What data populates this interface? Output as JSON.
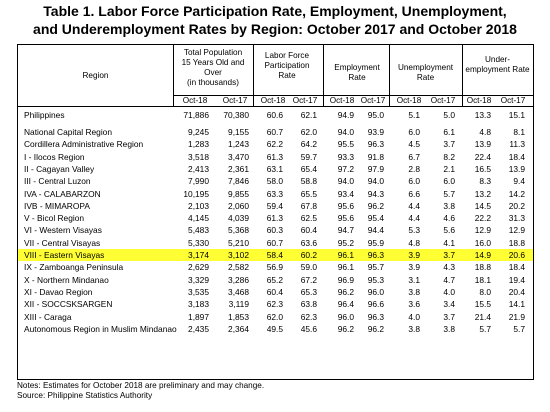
{
  "title": {
    "line1": "Table 1. Labor Force Participation Rate, Employment, Unemployment,",
    "line2": "and Underemployment Rates by Region: October 2017 and October 2018"
  },
  "header": {
    "region": "Region",
    "population": [
      "Total Population",
      "15 Years Old and",
      "Over",
      "(in thousands)"
    ],
    "lfpr": [
      "Labor Force",
      "Participation",
      "Rate"
    ],
    "employment": [
      "Employment",
      "Rate"
    ],
    "unemployment": [
      "Unemployment",
      "Rate"
    ],
    "underemployment": [
      "Under-",
      "employment Rate"
    ],
    "periods": [
      "Oct-18",
      "Oct-17",
      "Oct-18",
      "Oct-17",
      "Oct-18",
      "Oct-17",
      "Oct-18",
      "Oct-17",
      "Oct-18",
      "Oct-17"
    ]
  },
  "rows": [
    {
      "region": "Philippines",
      "values": [
        "71,886",
        "70,380",
        "60.6",
        "62.1",
        "94.9",
        "95.0",
        "5.1",
        "5.0",
        "13.3",
        "15.1"
      ],
      "highlight": false
    },
    {
      "region": "National Capital Region",
      "values": [
        "9,245",
        "9,155",
        "60.7",
        "62.0",
        "94.0",
        "93.9",
        "6.0",
        "6.1",
        "4.8",
        "8.1"
      ],
      "highlight": false
    },
    {
      "region": "Cordillera Administrative Region",
      "values": [
        "1,283",
        "1,243",
        "62.2",
        "64.2",
        "95.5",
        "96.3",
        "4.5",
        "3.7",
        "13.9",
        "11.3"
      ],
      "highlight": false
    },
    {
      "region": "I - Ilocos Region",
      "values": [
        "3,518",
        "3,470",
        "61.3",
        "59.7",
        "93.3",
        "91.8",
        "6.7",
        "8.2",
        "22.4",
        "18.4"
      ],
      "highlight": false
    },
    {
      "region": "II - Cagayan Valley",
      "values": [
        "2,413",
        "2,361",
        "63.1",
        "65.4",
        "97.2",
        "97.9",
        "2.8",
        "2.1",
        "16.5",
        "13.9"
      ],
      "highlight": false
    },
    {
      "region": "III - Central Luzon",
      "values": [
        "7,990",
        "7,846",
        "58.0",
        "58.8",
        "94.0",
        "94.0",
        "6.0",
        "6.0",
        "8.3",
        "9.4"
      ],
      "highlight": false
    },
    {
      "region": "IVA - CALABARZON",
      "values": [
        "10,195",
        "9,855",
        "63.3",
        "65.5",
        "93.4",
        "94.3",
        "6.6",
        "5.7",
        "13.2",
        "14.2"
      ],
      "highlight": false
    },
    {
      "region": "IVB - MIMAROPA",
      "values": [
        "2,103",
        "2,060",
        "59.4",
        "67.8",
        "95.6",
        "96.2",
        "4.4",
        "3.8",
        "14.5",
        "20.2"
      ],
      "highlight": false
    },
    {
      "region": "V - Bicol Region",
      "values": [
        "4,145",
        "4,039",
        "61.3",
        "62.5",
        "95.6",
        "95.4",
        "4.4",
        "4.6",
        "22.2",
        "31.3"
      ],
      "highlight": false
    },
    {
      "region": "VI - Western Visayas",
      "values": [
        "5,483",
        "5,368",
        "60.3",
        "60.4",
        "94.7",
        "94.4",
        "5.3",
        "5.6",
        "12.9",
        "12.9"
      ],
      "highlight": false
    },
    {
      "region": "VII - Central Visayas",
      "values": [
        "5,330",
        "5,210",
        "60.7",
        "63.6",
        "95.2",
        "95.9",
        "4.8",
        "4.1",
        "16.0",
        "18.8"
      ],
      "highlight": false
    },
    {
      "region": "VIII - Eastern Visayas",
      "values": [
        "3,174",
        "3,102",
        "58.4",
        "60.2",
        "96.1",
        "96.3",
        "3.9",
        "3.7",
        "14.9",
        "20.6"
      ],
      "highlight": true
    },
    {
      "region": "IX - Zamboanga Peninsula",
      "values": [
        "2,629",
        "2,582",
        "56.9",
        "59.0",
        "96.1",
        "95.7",
        "3.9",
        "4.3",
        "18.8",
        "18.4"
      ],
      "highlight": false
    },
    {
      "region": "X - Northern Mindanao",
      "values": [
        "3,329",
        "3,286",
        "65.2",
        "67.2",
        "96.9",
        "95.3",
        "3.1",
        "4.7",
        "18.1",
        "19.4"
      ],
      "highlight": false
    },
    {
      "region": "XI - Davao Region",
      "values": [
        "3,535",
        "3,468",
        "60.4",
        "65.3",
        "96.2",
        "96.0",
        "3.8",
        "4.0",
        "8.0",
        "20.4"
      ],
      "highlight": false
    },
    {
      "region": "XII - SOCCSKSARGEN",
      "values": [
        "3,183",
        "3,119",
        "62.3",
        "63.8",
        "96.4",
        "96.6",
        "3.6",
        "3.4",
        "15.5",
        "14.1"
      ],
      "highlight": false
    },
    {
      "region": "XIII - Caraga",
      "values": [
        "1,897",
        "1,853",
        "62.0",
        "62.3",
        "96.0",
        "96.3",
        "4.0",
        "3.7",
        "21.4",
        "21.9"
      ],
      "highlight": false
    },
    {
      "region": "Autonomous Region in Muslim Mindanao",
      "values": [
        "2,435",
        "2,364",
        "49.5",
        "45.6",
        "96.2",
        "96.2",
        "3.8",
        "3.8",
        "5.7",
        "5.7"
      ],
      "highlight": false
    }
  ],
  "notes": {
    "line1": "Notes: Estimates for October 2018 are preliminary and may change.",
    "line2": "Source: Philippine Statistics Authority"
  },
  "colors": {
    "highlight": "#ffff33",
    "border": "#000000"
  }
}
